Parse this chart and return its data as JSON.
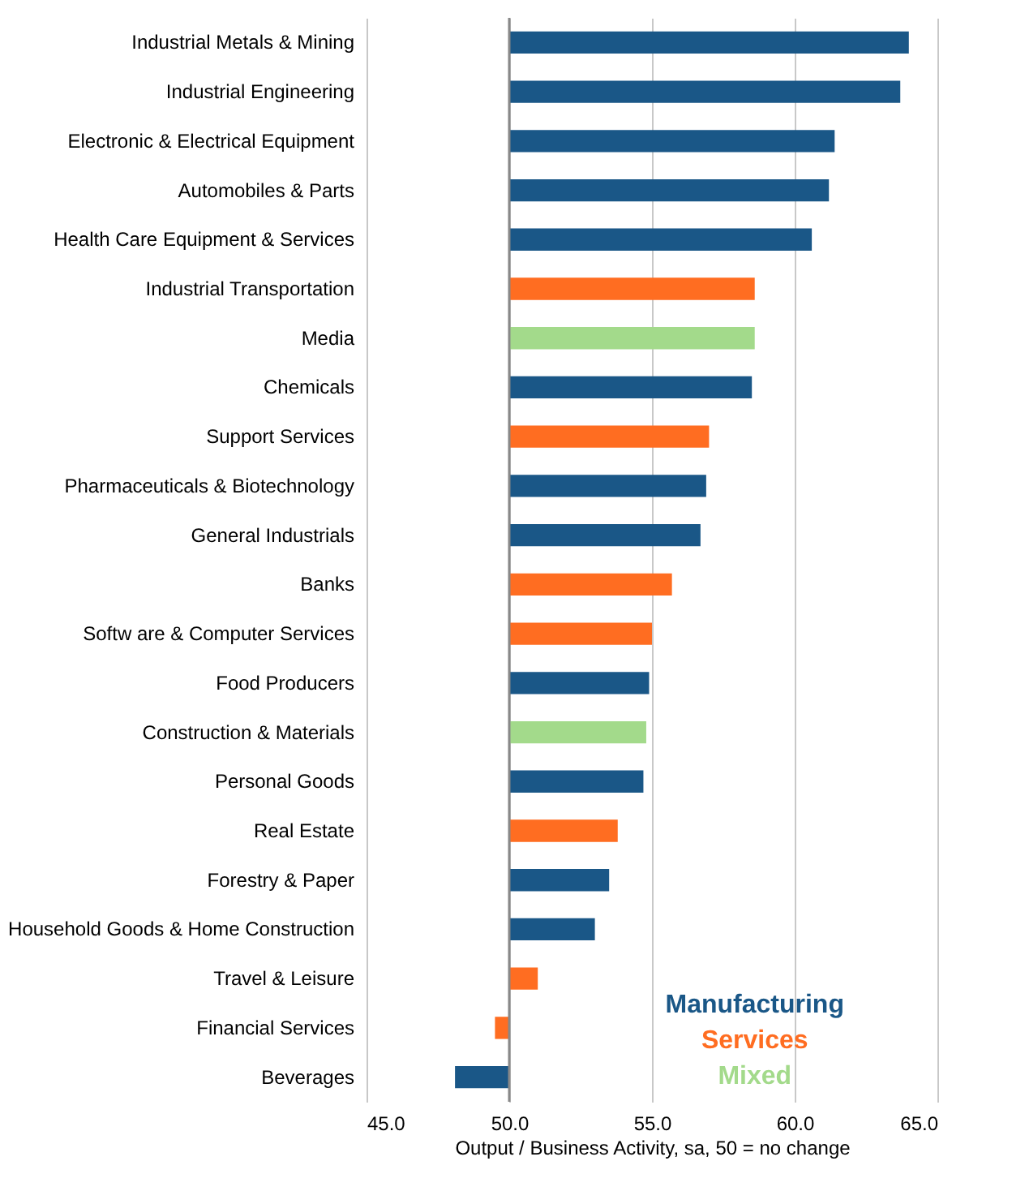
{
  "chart_data": {
    "type": "bar",
    "orientation": "horizontal",
    "categories": [
      "Industrial Metals & Mining",
      "Industrial Engineering",
      "Electronic & Electrical Equipment",
      "Automobiles & Parts",
      "Health Care Equipment & Services",
      "Industrial Transportation",
      "Media",
      "Chemicals",
      "Support Services",
      "Pharmaceuticals & Biotechnology",
      "General Industrials",
      "Banks",
      "Softw are & Computer Services",
      "Food Producers",
      "Construction & Materials",
      "Personal Goods",
      "Real Estate",
      "Forestry & Paper",
      "Household Goods & Home Construction",
      "Travel & Leisure",
      "Financial Services",
      "Beverages"
    ],
    "base": [
      50,
      50,
      50,
      50,
      50,
      50,
      50,
      50,
      50,
      50,
      50,
      50,
      50,
      50,
      50,
      50,
      50,
      50,
      50,
      50,
      50,
      50
    ],
    "values": [
      14.0,
      13.7,
      11.4,
      11.2,
      10.6,
      8.6,
      8.6,
      8.5,
      7.0,
      6.9,
      6.7,
      5.7,
      5.0,
      4.9,
      4.8,
      4.7,
      3.8,
      3.5,
      3.0,
      1.0,
      -0.5,
      -1.9
    ],
    "colors": [
      "#1a5787",
      "#1a5787",
      "#1a5787",
      "#1a5787",
      "#1a5787",
      "#ff6d21",
      "#a3da8b",
      "#1a5787",
      "#ff6d21",
      "#1a5787",
      "#1a5787",
      "#ff6d21",
      "#ff6d21",
      "#1a5787",
      "#a3da8b",
      "#1a5787",
      "#ff6d21",
      "#1a5787",
      "#1a5787",
      "#ff6d21",
      "#ff6d21",
      "#1a5787"
    ],
    "annotations": [
      "Manufacturing",
      "Services",
      "Mixed"
    ],
    "ref_lines": [
      {
        "axis": "x",
        "value": 50,
        "color": "#888888"
      }
    ],
    "xlabel": "Output / Business Activity, sa, 50 = no change",
    "xlim": [
      45,
      65
    ],
    "xticks": [
      {
        "value": 45,
        "label": "45.0"
      },
      {
        "value": 50,
        "label": "50.0"
      },
      {
        "value": 55,
        "label": "55.0"
      },
      {
        "value": 60,
        "label": "60.0"
      },
      {
        "value": 65,
        "label": "65.0"
      }
    ],
    "grid": "x"
  }
}
